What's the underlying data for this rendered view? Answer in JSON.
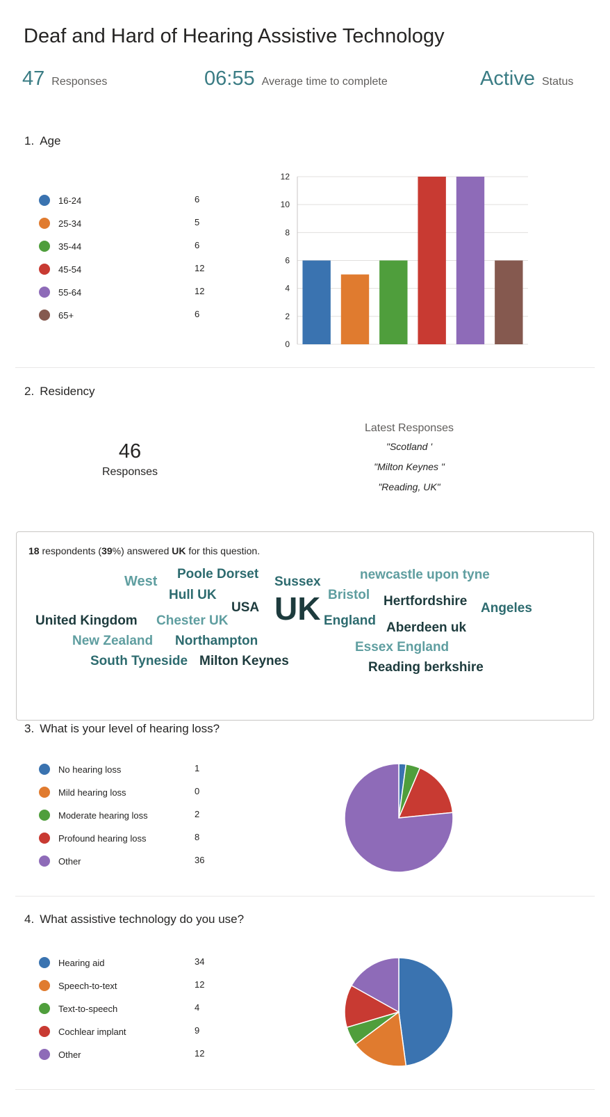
{
  "header": {
    "title": "Deaf and Hard of Hearing Assistive Technology",
    "responses_count": "47",
    "responses_label": "Responses",
    "avg_time": "06:55",
    "avg_time_label": "Average time to complete",
    "status": "Active",
    "status_label": "Status"
  },
  "q1": {
    "number": "1.",
    "title": "Age",
    "legend": [
      {
        "label": "16-24",
        "count": "6",
        "color": "#3a73b0"
      },
      {
        "label": "25-34",
        "count": "5",
        "color": "#e07b2f"
      },
      {
        "label": "35-44",
        "count": "6",
        "color": "#4f9e3c"
      },
      {
        "label": "45-54",
        "count": "12",
        "color": "#c83a32"
      },
      {
        "label": "55-64",
        "count": "12",
        "color": "#8e6bb8"
      },
      {
        "label": "65+",
        "count": "6",
        "color": "#85594f"
      }
    ]
  },
  "q2": {
    "number": "2.",
    "title": "Residency",
    "responses_count": "46",
    "responses_label": "Responses",
    "latest_title": "Latest Responses",
    "latest": [
      "\"Scotland '",
      "\"Milton Keynes \"",
      "\"Reading, UK\""
    ],
    "summary_count": "18",
    "summary_pre": " respondents (",
    "summary_pct": "39",
    "summary_mid": "%) answered ",
    "summary_word": "UK",
    "summary_post": " for this question.",
    "words": [
      {
        "text": "West",
        "color": "#5f9ea0"
      },
      {
        "text": "Poole Dorset",
        "color": "#2d6b6f"
      },
      {
        "text": "Sussex",
        "color": "#2d6b6f"
      },
      {
        "text": "newcastle upon tyne",
        "color": "#5f9ea0"
      },
      {
        "text": "Hull UK",
        "color": "#2d6b6f"
      },
      {
        "text": "USA",
        "color": "#1d3b3d"
      },
      {
        "text": "UK",
        "color": "#1d3b3d"
      },
      {
        "text": "Bristol",
        "color": "#5f9ea0"
      },
      {
        "text": "Hertfordshire",
        "color": "#1d3b3d"
      },
      {
        "text": "Angeles",
        "color": "#2d6b6f"
      },
      {
        "text": "United Kingdom",
        "color": "#1d3b3d"
      },
      {
        "text": "Chester UK",
        "color": "#5f9ea0"
      },
      {
        "text": "England",
        "color": "#2d6b6f"
      },
      {
        "text": "Aberdeen uk",
        "color": "#1d3b3d"
      },
      {
        "text": "New Zealand",
        "color": "#5f9ea0"
      },
      {
        "text": "Northampton",
        "color": "#2d6b6f"
      },
      {
        "text": "Essex England",
        "color": "#5f9ea0"
      },
      {
        "text": "South Tyneside",
        "color": "#2d6b6f"
      },
      {
        "text": "Milton Keynes",
        "color": "#1d3b3d"
      },
      {
        "text": "Reading berkshire",
        "color": "#1d3b3d"
      }
    ]
  },
  "q3": {
    "number": "3.",
    "title": "What is your level of hearing loss?",
    "legend": [
      {
        "label": "No hearing loss",
        "count": "1",
        "color": "#3a73b0"
      },
      {
        "label": "Mild hearing loss",
        "count": "0",
        "color": "#e07b2f"
      },
      {
        "label": "Moderate hearing loss",
        "count": "2",
        "color": "#4f9e3c"
      },
      {
        "label": "Profound hearing loss",
        "count": "8",
        "color": "#c83a32"
      },
      {
        "label": "Other",
        "count": "36",
        "color": "#8e6bb8"
      }
    ]
  },
  "q4": {
    "number": "4.",
    "title": "What assistive technology do you use?",
    "legend": [
      {
        "label": "Hearing aid",
        "count": "34",
        "color": "#3a73b0"
      },
      {
        "label": "Speech-to-text",
        "count": "12",
        "color": "#e07b2f"
      },
      {
        "label": "Text-to-speech",
        "count": "4",
        "color": "#4f9e3c"
      },
      {
        "label": "Cochlear implant",
        "count": "9",
        "color": "#c83a32"
      },
      {
        "label": "Other",
        "count": "12",
        "color": "#8e6bb8"
      }
    ]
  },
  "chart_data": [
    {
      "type": "bar",
      "categories": [
        "16-24",
        "25-34",
        "35-44",
        "45-54",
        "55-64",
        "65+"
      ],
      "values": [
        6,
        5,
        6,
        12,
        12,
        6
      ],
      "colors": [
        "#3a73b0",
        "#e07b2f",
        "#4f9e3c",
        "#c83a32",
        "#8e6bb8",
        "#85594f"
      ],
      "yticks": [
        "0",
        "2",
        "4",
        "6",
        "8",
        "10",
        "12"
      ],
      "ylim": [
        0,
        12
      ],
      "grid": true
    },
    {
      "type": "pie",
      "labels": [
        "No hearing loss",
        "Mild hearing loss",
        "Moderate hearing loss",
        "Profound hearing loss",
        "Other"
      ],
      "values": [
        1,
        0,
        2,
        8,
        36
      ],
      "colors": [
        "#3a73b0",
        "#e07b2f",
        "#4f9e3c",
        "#c83a32",
        "#8e6bb8"
      ]
    },
    {
      "type": "pie",
      "labels": [
        "Hearing aid",
        "Speech-to-text",
        "Text-to-speech",
        "Cochlear implant",
        "Other"
      ],
      "values": [
        34,
        12,
        4,
        9,
        12
      ],
      "colors": [
        "#3a73b0",
        "#e07b2f",
        "#4f9e3c",
        "#c83a32",
        "#8e6bb8"
      ]
    }
  ]
}
